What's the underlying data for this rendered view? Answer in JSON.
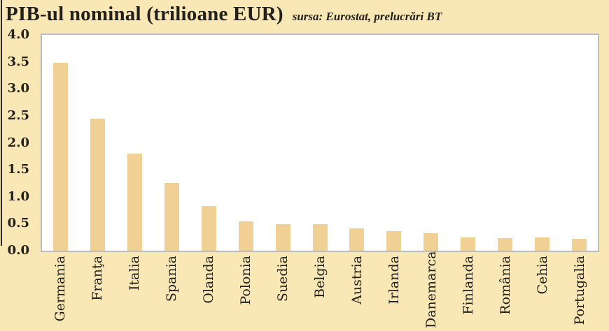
{
  "header": {
    "title": "PIB-ul nominal (trilioane EUR)",
    "subtitle": "sursa: Eurostat, prelucrări BT"
  },
  "chart_data": {
    "type": "bar",
    "title": "PIB-ul nominal (trilioane EUR)",
    "source_note": "sursa: Eurostat, prelucrări BT",
    "unit": "trilioane EUR",
    "categories": [
      "Germania",
      "Franţa",
      "Italia",
      "Spania",
      "Olanda",
      "Polonia",
      "Suedia",
      "Belgia",
      "Austria",
      "Irlanda",
      "Danemarca",
      "Finlanda",
      "România",
      "Cehia",
      "Portugalia"
    ],
    "values": [
      3.48,
      2.45,
      1.8,
      1.26,
      0.83,
      0.55,
      0.49,
      0.49,
      0.42,
      0.36,
      0.33,
      0.25,
      0.23,
      0.24,
      0.22
    ],
    "ylim": [
      0,
      4
    ],
    "ytick_step": 0.5,
    "ytick_labels": [
      "0.0",
      "0.5",
      "1.0",
      "1.5",
      "2.0",
      "2.5",
      "3.0",
      "3.5",
      "4.0"
    ],
    "grid": false,
    "legend": false,
    "x_labels_rotation_deg": 90,
    "colors": {
      "page_bg": "#FAE7B6",
      "bar": "#F1D096",
      "plot_bg": "#FFFFFF",
      "plot_border": "#BDBDBD",
      "text": "#21201A",
      "left_edge_artifact": "#2B2720"
    }
  }
}
